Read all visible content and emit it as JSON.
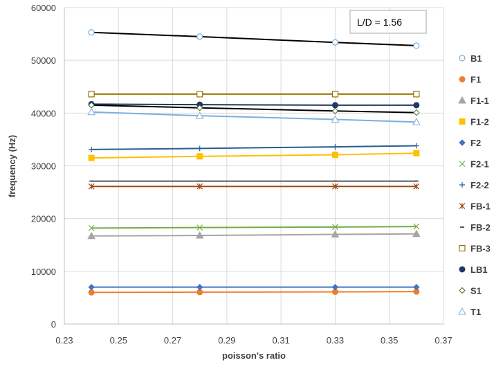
{
  "chart_data": {
    "type": "line",
    "xlabel": "poisson's ratio",
    "ylabel": "frequency (Hz)",
    "xlim": [
      0.23,
      0.37
    ],
    "ylim": [
      0,
      60000
    ],
    "xticks": [
      "0.23",
      "0.25",
      "0.27",
      "0.29",
      "0.31",
      "0.33",
      "0.35",
      "0.37"
    ],
    "yticks": [
      "0",
      "10000",
      "20000",
      "30000",
      "40000",
      "50000",
      "60000"
    ],
    "grid": true,
    "legend_position": "right",
    "annotation": "L/D = 1.56",
    "x": [
      0.24,
      0.28,
      0.33,
      0.36
    ],
    "series": [
      {
        "name": "B1",
        "values": [
          55300,
          54500,
          53400,
          52800
        ],
        "color": "#5b9bd5",
        "marker": "circle-open",
        "line": "#000000"
      },
      {
        "name": "F1",
        "values": [
          6000,
          6050,
          6100,
          6150
        ],
        "color": "#ed7d31",
        "marker": "circle-filled",
        "line": "#ed7d31"
      },
      {
        "name": "F1-1",
        "values": [
          16700,
          16800,
          17000,
          17100
        ],
        "color": "#a5a5a5",
        "marker": "triangle-filled",
        "line": "#a5a5a5"
      },
      {
        "name": "F1-2",
        "values": [
          31500,
          31800,
          32100,
          32400
        ],
        "color": "#ffc000",
        "marker": "square-filled",
        "line": "#ffc000"
      },
      {
        "name": "F2",
        "values": [
          7000,
          7000,
          7000,
          7000
        ],
        "color": "#4472c4",
        "marker": "diamond-filled",
        "line": "#4472c4"
      },
      {
        "name": "F2-1",
        "values": [
          18200,
          18300,
          18400,
          18500
        ],
        "color": "#70ad47",
        "marker": "x",
        "line": "#70ad47"
      },
      {
        "name": "F2-2",
        "values": [
          33100,
          33300,
          33600,
          33800
        ],
        "color": "#255e91",
        "marker": "plus",
        "line": "#255e91"
      },
      {
        "name": "FB-1",
        "values": [
          26100,
          26100,
          26100,
          26100
        ],
        "color": "#9e480e",
        "marker": "asterisk",
        "line": "#9e480e"
      },
      {
        "name": "FB-2",
        "values": [
          27100,
          27100,
          27100,
          27100
        ],
        "color": "#595959",
        "marker": "dash",
        "line": "#595959"
      },
      {
        "name": "FB-3",
        "values": [
          43600,
          43600,
          43600,
          43600
        ],
        "color": "#997300",
        "marker": "square-open",
        "line": "#997300"
      },
      {
        "name": "LB1",
        "values": [
          41700,
          41600,
          41500,
          41500
        ],
        "color": "#203864",
        "marker": "circle-filled",
        "line": "#203864"
      },
      {
        "name": "S1",
        "values": [
          41500,
          41000,
          40400,
          40100
        ],
        "color": "#43682b",
        "marker": "diamond-open",
        "line": "#000000"
      },
      {
        "name": "T1",
        "values": [
          40200,
          39500,
          38800,
          38300
        ],
        "color": "#7cafdd",
        "marker": "triangle-open",
        "line": "#7cafdd"
      }
    ]
  }
}
